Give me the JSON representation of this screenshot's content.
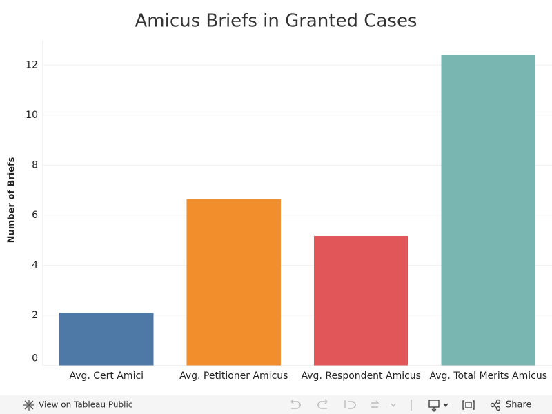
{
  "chart_data": {
    "type": "bar",
    "title": "Amicus Briefs in Granted Cases",
    "y_label": "Number of Briefs",
    "categories": [
      "Avg. Cert Amici",
      "Avg. Petitioner Amicus",
      "Avg. Respondent Amicus",
      "Avg. Total Merits Amicus"
    ],
    "values": [
      2.1,
      6.65,
      5.17,
      12.4
    ],
    "colors": [
      "#4e79a7",
      "#f28e2b",
      "#e15759",
      "#7ab6b1"
    ],
    "ylim": [
      0,
      13
    ],
    "yticks": [
      0,
      2,
      4,
      6,
      8,
      10,
      12
    ],
    "grid": true
  },
  "toolbar": {
    "view_link": "View on Tableau Public",
    "share": "Share"
  }
}
